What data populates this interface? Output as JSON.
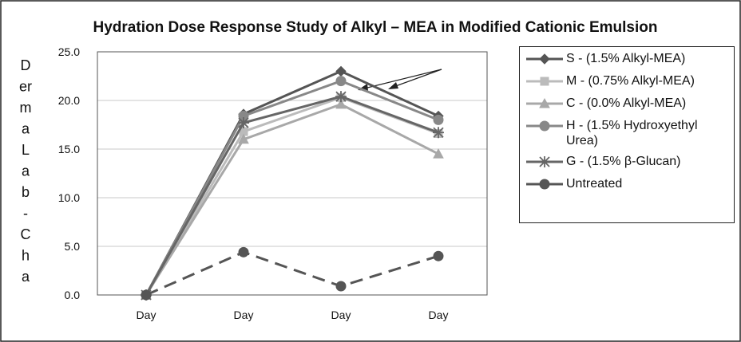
{
  "chart_data": {
    "type": "line",
    "title": "Hydration Dose Response Study of Alkyl – MEA in Modified Cationic Emulsion",
    "y_label_lines": [
      "D",
      "er",
      "m",
      "a",
      "L",
      "a",
      "b",
      "-",
      "C",
      "h",
      "a"
    ],
    "categories": [
      "Day",
      "Day",
      "Day",
      "Day"
    ],
    "series": [
      {
        "name": "S - (1.5% Alkyl-MEA)",
        "color": "#555555",
        "marker": "diamond",
        "line_style": "solid",
        "values": [
          0,
          18.6,
          23.0,
          18.4
        ]
      },
      {
        "name": "M - (0.75% Alkyl-MEA)",
        "color": "#bbbbbb",
        "marker": "square",
        "line_style": "solid",
        "values": [
          0,
          16.8,
          20.3,
          16.6
        ]
      },
      {
        "name": "C - (0.0% Alkyl-MEA)",
        "color": "#a8a8a8",
        "marker": "triangle",
        "line_style": "solid",
        "values": [
          0,
          16.0,
          19.6,
          14.5
        ]
      },
      {
        "name": "H - (1.5% Hydroxyethyl Urea)",
        "color": "#888888",
        "marker": "circle",
        "line_style": "solid",
        "values": [
          0,
          18.4,
          22.0,
          18.0
        ]
      },
      {
        "name": "G - (1.5% β-Glucan)",
        "color": "#666666",
        "marker": "asterisk",
        "line_style": "solid",
        "values": [
          0,
          17.7,
          20.4,
          16.7
        ]
      },
      {
        "name": "Untreated",
        "color": "#555555",
        "marker": "circle",
        "line_style": "dashed",
        "values": [
          0,
          4.4,
          0.9,
          4.0
        ]
      }
    ],
    "ylim": [
      0,
      25
    ],
    "yticks": [
      {
        "value": 0,
        "label": "0.0"
      },
      {
        "value": 5,
        "label": "5.0"
      },
      {
        "value": 10,
        "label": "10.0"
      },
      {
        "value": 15,
        "label": "15.0"
      },
      {
        "value": 20,
        "label": "20.0"
      },
      {
        "value": 25,
        "label": "25.0"
      }
    ],
    "grid": true,
    "legend": "right"
  }
}
